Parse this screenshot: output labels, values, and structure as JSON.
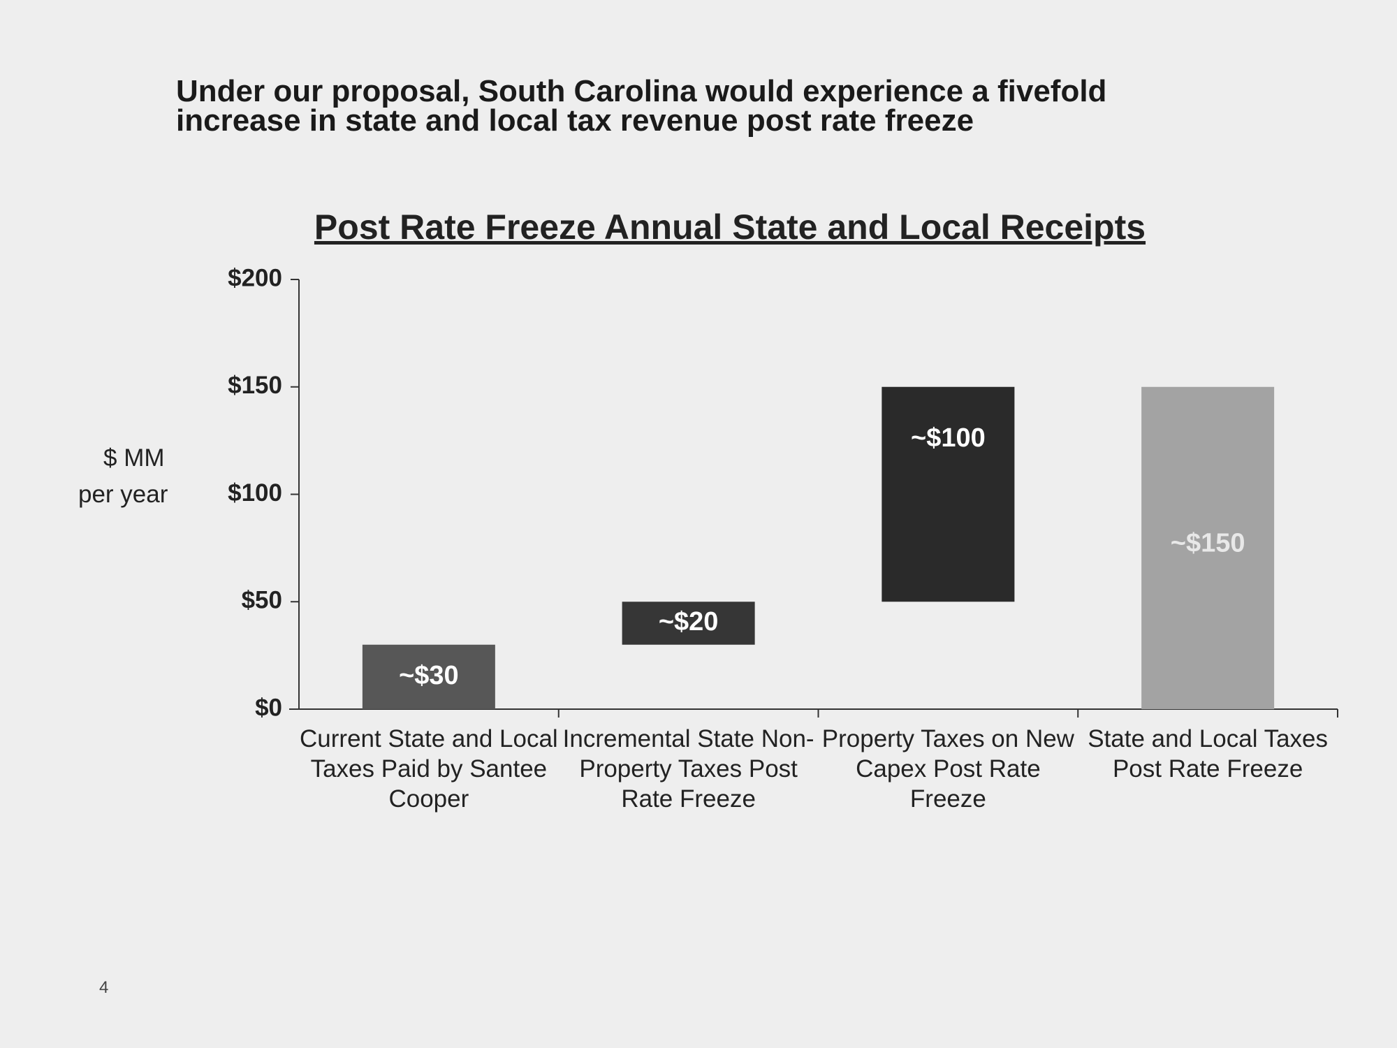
{
  "header": {
    "title": "Under our proposal, South Carolina would experience a fivefold increase in state and local tax revenue post rate freeze"
  },
  "chart_data": {
    "type": "waterfall",
    "title": "Post Rate Freeze Annual State and Local Receipts",
    "ylabel": [
      "$ MM",
      "per year"
    ],
    "categories": [
      "Current State and Local Taxes Paid by Santee Cooper",
      "Incremental State Non-Property Taxes Post Rate Freeze",
      "Property Taxes on New Capex Post Rate Freeze",
      "State and Local Taxes Post Rate Freeze"
    ],
    "values": [
      30,
      20,
      100,
      150
    ],
    "value_labels": [
      "~$30",
      "~$20",
      "~$100",
      "~$150"
    ],
    "colors": [
      "#575757",
      "#363636",
      "#2a2a2a",
      "#a3a3a3"
    ],
    "ylim": [
      0,
      200
    ],
    "yticks": [
      {
        "value": 0,
        "label": "$0"
      },
      {
        "value": 50,
        "label": "$50"
      },
      {
        "value": 100,
        "label": "$100"
      },
      {
        "value": 150,
        "label": "$150"
      },
      {
        "value": 200,
        "label": "$200"
      }
    ]
  },
  "footer": {
    "page_number": "4"
  }
}
